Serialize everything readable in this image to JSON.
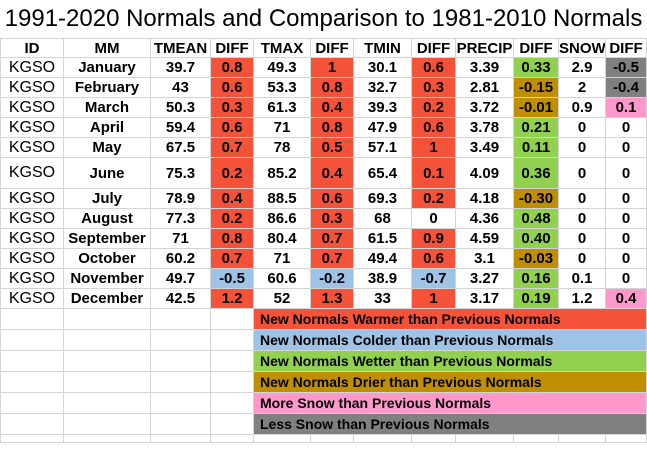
{
  "title": "1991-2020 Normals and Comparison to 1981-2010 Normals",
  "colors": {
    "warm": "#f4533a",
    "cold": "#9dc3e6",
    "wet": "#92d050",
    "dry": "#bf8f00",
    "snow_more": "#ff99cc",
    "snow_less": "#808080"
  },
  "headers": [
    "ID",
    "MM",
    "TMEAN",
    "DIFF",
    "TMAX",
    "DIFF",
    "TMIN",
    "DIFF",
    "PRECIP",
    "DIFF",
    "SNOW",
    "DIFF"
  ],
  "rows": [
    {
      "cells": [
        "KGSO",
        "January",
        "39.7",
        "0.8",
        "49.3",
        "1",
        "30.1",
        "0.6",
        "3.39",
        "0.33",
        "2.9",
        "-0.5"
      ]
    },
    {
      "cells": [
        "KGSO",
        "February",
        "43",
        "0.6",
        "53.3",
        "0.8",
        "32.7",
        "0.3",
        "2.81",
        "-0.15",
        "2",
        "-0.4"
      ]
    },
    {
      "cells": [
        "KGSO",
        "March",
        "50.3",
        "0.3",
        "61.3",
        "0.4",
        "39.3",
        "0.2",
        "3.72",
        "-0.01",
        "0.9",
        "0.1"
      ]
    },
    {
      "cells": [
        "KGSO",
        "April",
        "59.4",
        "0.6",
        "71",
        "0.8",
        "47.9",
        "0.6",
        "3.78",
        "0.21",
        "0",
        "0"
      ]
    },
    {
      "cells": [
        "KGSO",
        "May",
        "67.5",
        "0.7",
        "78",
        "0.5",
        "57.1",
        "1",
        "3.49",
        "0.11",
        "0",
        "0"
      ]
    },
    {
      "cells": [
        "KGSO",
        "June",
        "75.3",
        "0.2",
        "85.2",
        "0.4",
        "65.4",
        "0.1",
        "4.09",
        "0.36",
        "0",
        "0"
      ]
    },
    {
      "cells": [
        "KGSO",
        "July",
        "78.9",
        "0.4",
        "88.5",
        "0.6",
        "69.3",
        "0.2",
        "4.18",
        "-0.30",
        "0",
        "0"
      ]
    },
    {
      "cells": [
        "KGSO",
        "August",
        "77.3",
        "0.2",
        "86.6",
        "0.3",
        "68",
        "0",
        "4.36",
        "0.48",
        "0",
        "0"
      ]
    },
    {
      "cells": [
        "KGSO",
        "September",
        "71",
        "0.8",
        "80.4",
        "0.7",
        "61.5",
        "0.9",
        "4.59",
        "0.40",
        "0",
        "0"
      ]
    },
    {
      "cells": [
        "KGSO",
        "October",
        "60.2",
        "0.7",
        "71",
        "0.7",
        "49.4",
        "0.6",
        "3.1",
        "-0.03",
        "0",
        "0"
      ]
    },
    {
      "cells": [
        "KGSO",
        "November",
        "49.7",
        "-0.5",
        "60.6",
        "-0.2",
        "38.9",
        "-0.7",
        "3.27",
        "0.16",
        "0.1",
        "0"
      ]
    },
    {
      "cells": [
        "KGSO",
        "December",
        "42.5",
        "1.2",
        "52",
        "1.3",
        "33",
        "1",
        "3.17",
        "0.19",
        "1.2",
        "0.4"
      ]
    }
  ],
  "legend": [
    {
      "label": "New Normals Warmer than Previous Normals",
      "color": "warm"
    },
    {
      "label": "New Normals Colder than Previous Normals",
      "color": "cold"
    },
    {
      "label": "New Normals Wetter than Previous Normals",
      "color": "wet"
    },
    {
      "label": "New Normals Drier than Previous Normals",
      "color": "dry"
    },
    {
      "label": "More Snow than Previous Normals",
      "color": "snow_more"
    },
    {
      "label": "Less Snow than Previous Normals",
      "color": "snow_less"
    }
  ]
}
